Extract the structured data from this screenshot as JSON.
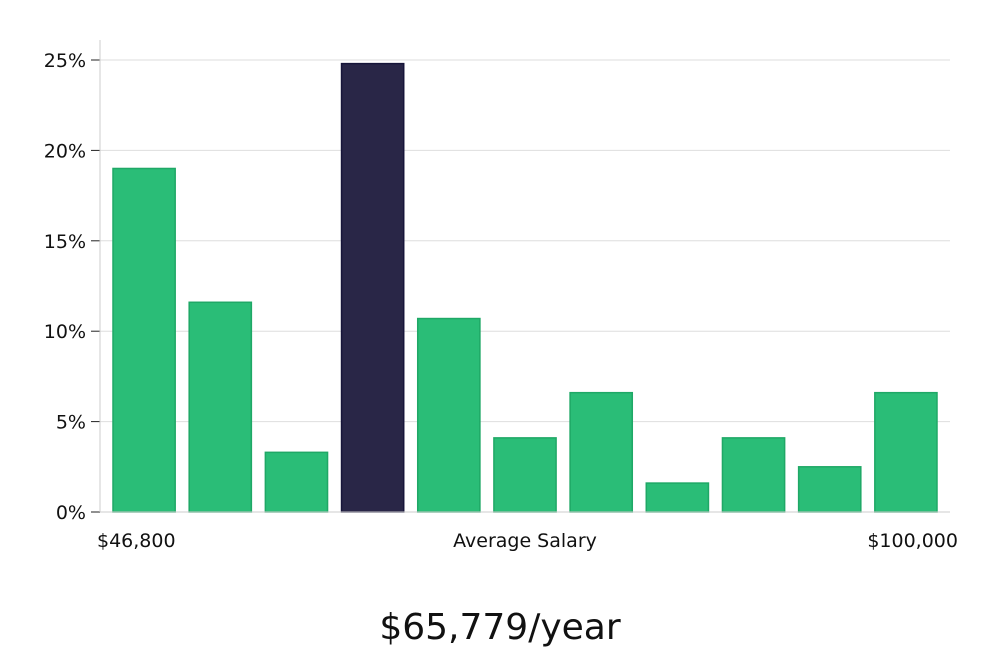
{
  "chart_data": {
    "type": "bar",
    "series": [
      {
        "values": [
          19.0,
          11.6,
          3.3,
          24.8,
          10.7,
          4.1,
          6.6,
          1.6,
          4.1,
          2.5,
          6.6
        ]
      }
    ],
    "highlight_index": 3,
    "ylim": [
      0,
      25
    ],
    "y_ticks": [
      "0%",
      "5%",
      "10%",
      "15%",
      "20%",
      "25%"
    ],
    "x_tick_labels": {
      "min": "$46,800",
      "center": "Average Salary",
      "max": "$100,000"
    },
    "grid": "horizontal",
    "colors": {
      "bar": "#2abd77",
      "bar_border": "#1fa866",
      "highlight": "#292647",
      "highlight_border": "#17153a",
      "grid": "#dedede",
      "axis": "#cccccc"
    }
  },
  "salary_summary": "$65,779/year"
}
